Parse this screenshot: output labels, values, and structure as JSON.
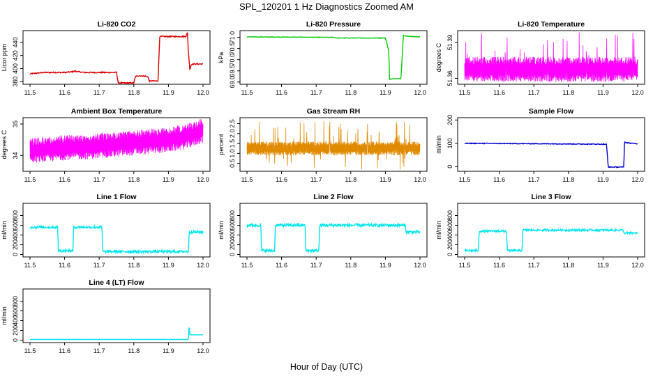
{
  "figure": {
    "title": "SPL_120201  1 Hz Diagnostics Zoomed AM",
    "xlabel": "Hour of Day (UTC)"
  },
  "chart_data": [
    {
      "type": "line",
      "title": "Li-820 CO2",
      "ylabel": "Licor ppm",
      "xlim": [
        11.5,
        12.0
      ],
      "ylim": [
        376,
        458
      ],
      "yticks": [
        380,
        400,
        420,
        440
      ],
      "color": "#dd0000",
      "x": [
        11.5,
        11.52,
        11.54,
        11.6,
        11.62,
        11.63,
        11.64,
        11.66,
        11.7,
        11.705,
        11.75,
        11.755,
        11.8,
        11.805,
        11.815,
        11.84,
        11.845,
        11.87,
        11.875,
        11.95,
        11.955,
        11.957,
        11.962,
        11.965,
        11.97,
        12.0
      ],
      "y": [
        392,
        393,
        394,
        394,
        395,
        396,
        395,
        394,
        394,
        394,
        394,
        378,
        378,
        388,
        389,
        388,
        381,
        381,
        449,
        449,
        455,
        432,
        398,
        405,
        407,
        407
      ],
      "noise": 0.8
    },
    {
      "type": "line",
      "title": "Li-820 Pressure",
      "ylabel": "kPa",
      "xlim": [
        11.5,
        12.0
      ],
      "ylim": [
        68.9,
        71.3
      ],
      "yticks": [
        69.0,
        69.5,
        70.0,
        70.5,
        71.0
      ],
      "color": "#00cc00",
      "x": [
        11.5,
        11.75,
        11.76,
        11.9,
        11.91,
        11.912,
        11.92,
        11.945,
        11.952,
        11.96,
        12.0
      ],
      "y": [
        71.02,
        71.0,
        70.97,
        70.97,
        70.4,
        69.1,
        69.15,
        69.15,
        71.1,
        71.05,
        71.02
      ],
      "noise": 0.01
    },
    {
      "type": "band",
      "title": "Li-820 Temperature",
      "ylabel": "degrees C",
      "xlim": [
        11.5,
        12.0
      ],
      "ylim": [
        51.355,
        51.4
      ],
      "yticks": [
        51.36,
        51.39
      ],
      "color": "#ff00ff",
      "x": [
        11.5,
        12.0
      ],
      "y": [
        51.365,
        51.365
      ],
      "low": 51.357,
      "high": 51.378,
      "spike_high": 51.399
    },
    {
      "type": "band",
      "title": "Ambient Box Temperature",
      "ylabel": "degrees C",
      "xlim": [
        11.5,
        12.0
      ],
      "ylim": [
        33.5,
        35.2
      ],
      "yticks": [
        34.0,
        35.0
      ],
      "color": "#ff00ff",
      "x": [
        11.5,
        11.6,
        11.7,
        11.8,
        11.9,
        11.95,
        12.0
      ],
      "y": [
        34.05,
        34.15,
        34.2,
        34.3,
        34.4,
        34.5,
        34.7
      ],
      "low_offset": -0.3,
      "high_offset": 0.5
    },
    {
      "type": "band",
      "title": "Gas Stream RH",
      "ylabel": "percent",
      "xlim": [
        11.5,
        12.0
      ],
      "ylim": [
        0.1,
        2.8
      ],
      "yticks": [
        0.5,
        1.0,
        1.5,
        2.0,
        2.5
      ],
      "color": "#e08a00",
      "x": [
        11.5,
        12.0
      ],
      "y": [
        1.25,
        1.25
      ],
      "low_offset": -0.35,
      "high_offset": 0.35,
      "spike_high": 2.65,
      "spike_low": 0.15
    },
    {
      "type": "line",
      "title": "Sample Flow",
      "ylabel": "ml/min",
      "xlim": [
        11.5,
        12.0
      ],
      "ylim": [
        -20,
        210
      ],
      "yticks": [
        0,
        100,
        200
      ],
      "color": "#0000cc",
      "x": [
        11.5,
        11.75,
        11.91,
        11.915,
        11.96,
        11.962,
        11.97,
        12.0
      ],
      "y": [
        100,
        98,
        96,
        -2,
        -2,
        105,
        102,
        98
      ],
      "noise": 1.5
    },
    {
      "type": "line",
      "title": "Line 1 Flow",
      "ylabel": "ml/min",
      "xlim": [
        11.5,
        12.0
      ],
      "ylim": [
        -50,
        1050
      ],
      "yticks": [
        0,
        200,
        400,
        600,
        800
      ],
      "color": "#00e5ee",
      "x": [
        11.5,
        11.58,
        11.582,
        11.624,
        11.626,
        11.708,
        11.71,
        11.958,
        11.96,
        12.0
      ],
      "y": [
        560,
        560,
        75,
        75,
        560,
        560,
        60,
        60,
        460,
        460
      ],
      "noise": 25
    },
    {
      "type": "line",
      "title": "Line 2 Flow",
      "ylabel": "ml/min",
      "xlim": [
        11.5,
        12.0
      ],
      "ylim": [
        -50,
        1050
      ],
      "yticks": [
        0,
        200,
        400,
        600,
        800
      ],
      "color": "#00e5ee",
      "x": [
        11.5,
        11.54,
        11.542,
        11.58,
        11.582,
        11.668,
        11.67,
        11.708,
        11.71,
        11.958,
        11.96,
        12.0
      ],
      "y": [
        600,
        600,
        80,
        80,
        600,
        600,
        80,
        80,
        600,
        600,
        460,
        460
      ],
      "noise": 30
    },
    {
      "type": "line",
      "title": "Line 3 Flow",
      "ylabel": "ml/min",
      "xlim": [
        11.5,
        12.0
      ],
      "ylim": [
        -50,
        1050
      ],
      "yticks": [
        0,
        200,
        400,
        600,
        800
      ],
      "color": "#00e5ee",
      "x": [
        11.5,
        11.54,
        11.542,
        11.62,
        11.624,
        11.666,
        11.668,
        11.958,
        11.96,
        12.0
      ],
      "y": [
        80,
        80,
        480,
        480,
        80,
        80,
        500,
        500,
        440,
        440
      ],
      "noise": 20
    },
    {
      "type": "line",
      "title": "Line 4 (LT) Flow",
      "ylabel": "ml/min",
      "xlim": [
        11.5,
        12.0
      ],
      "ylim": [
        -50,
        1050
      ],
      "yticks": [
        0,
        200,
        400,
        600,
        800
      ],
      "color": "#00e5ee",
      "x": [
        11.5,
        11.958,
        11.96,
        11.962,
        11.965,
        12.0
      ],
      "y": [
        15,
        15,
        320,
        110,
        110,
        110
      ],
      "noise": 1
    }
  ],
  "xticks": [
    11.5,
    11.6,
    11.7,
    11.8,
    11.9,
    12.0
  ]
}
